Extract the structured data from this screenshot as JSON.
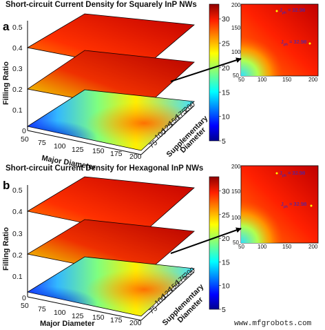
{
  "watermark": "www.mfgrobots.com",
  "colorbar": {
    "min": 5,
    "max": 33,
    "ticks": [
      5,
      10,
      15,
      20,
      25,
      30
    ]
  },
  "colors": {
    "frame": "#000000",
    "arrow": "#000000",
    "annotation": "#2a2ad0"
  },
  "chart_data": [
    {
      "type": "heatmap",
      "panel_label": "a",
      "title": "Short-circuit Current Density for Squarely InP NWs",
      "xlabel": "Major Diameter",
      "ylabel": "Filling Ratio",
      "y2label_line1": "Supplementary",
      "y2label_line2": "Diameter",
      "x_ticks": [
        50,
        75,
        100,
        125,
        150,
        175,
        200
      ],
      "y2_ticks": [
        50,
        75,
        100,
        125,
        150,
        175,
        200
      ],
      "z_ticks": [
        0,
        0.1,
        0.2,
        0.3,
        0.4,
        0.5
      ],
      "slices": [
        {
          "filling_ratio": 0.05,
          "min": 5,
          "max": 27
        },
        {
          "filling_ratio": 0.2,
          "min": 15,
          "max": 33
        },
        {
          "filling_ratio": 0.4,
          "min": 26,
          "max": 33
        }
      ],
      "inset": {
        "x_ticks": [
          50,
          100,
          150,
          200
        ],
        "y_ticks": [
          50,
          100,
          150,
          200
        ],
        "annotations": [
          {
            "label": "J",
            "sub": "ph",
            "text": " = 32.98"
          },
          {
            "label": "J",
            "sub": "ph",
            "text": " = 32.98"
          }
        ]
      },
      "colorbar_ticks": [
        5,
        10,
        15,
        20,
        25,
        30
      ]
    },
    {
      "type": "heatmap",
      "panel_label": "b",
      "title": "Short-circuit Current Density for Hexagonal InP NWs",
      "xlabel": "Major Diameter",
      "ylabel": "Filling Ratio",
      "y2label_line1": "Supplementary",
      "y2label_line2": "Diameter",
      "x_ticks": [
        50,
        75,
        100,
        125,
        150,
        175,
        200
      ],
      "y2_ticks": [
        50,
        75,
        100,
        125,
        150,
        175,
        200
      ],
      "z_ticks": [
        0,
        0.1,
        0.2,
        0.3,
        0.4,
        0.5
      ],
      "slices": [
        {
          "filling_ratio": 0.05,
          "min": 5,
          "max": 28
        },
        {
          "filling_ratio": 0.2,
          "min": 16,
          "max": 33
        },
        {
          "filling_ratio": 0.4,
          "min": 27,
          "max": 33
        }
      ],
      "inset": {
        "x_ticks": [
          50,
          100,
          150,
          200
        ],
        "y_ticks": [
          50,
          100,
          150,
          200
        ],
        "annotations": [
          {
            "label": "J",
            "sub": "ph",
            "text": " = 32.98"
          },
          {
            "label": "J",
            "sub": "ph",
            "text": " = 32.98"
          }
        ]
      },
      "colorbar_ticks": [
        5,
        10,
        15,
        20,
        25,
        30
      ]
    }
  ]
}
